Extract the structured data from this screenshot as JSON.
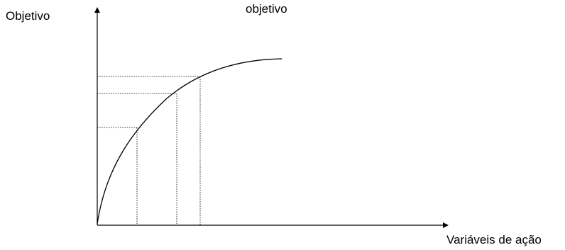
{
  "labels": {
    "y_axis": "Objetivo",
    "top_text": "objetivo",
    "x_axis": "Variáveis de ação"
  },
  "colors": {
    "line": "#000000",
    "background": "#ffffff"
  }
}
